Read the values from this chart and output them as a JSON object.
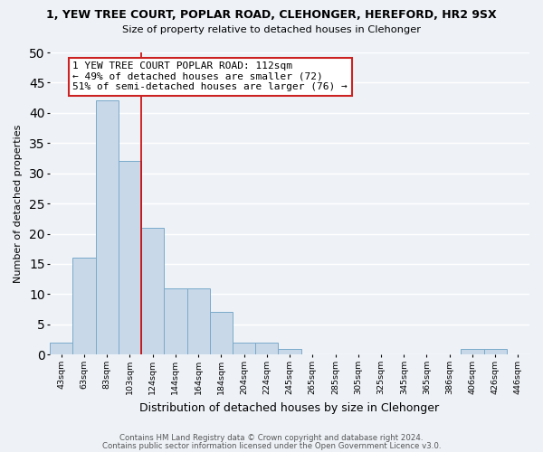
{
  "title_line1": "1, YEW TREE COURT, POPLAR ROAD, CLEHONGER, HEREFORD, HR2 9SX",
  "title_line2": "Size of property relative to detached houses in Clehonger",
  "xlabel": "Distribution of detached houses by size in Clehonger",
  "ylabel": "Number of detached properties",
  "bin_labels": [
    "43sqm",
    "63sqm",
    "83sqm",
    "103sqm",
    "124sqm",
    "144sqm",
    "164sqm",
    "184sqm",
    "204sqm",
    "224sqm",
    "245sqm",
    "265sqm",
    "285sqm",
    "305sqm",
    "325sqm",
    "345sqm",
    "365sqm",
    "386sqm",
    "406sqm",
    "426sqm",
    "446sqm"
  ],
  "bar_heights": [
    2,
    16,
    42,
    32,
    21,
    11,
    11,
    7,
    2,
    2,
    1,
    0,
    0,
    0,
    0,
    0,
    0,
    0,
    1,
    1,
    0
  ],
  "bar_color": "#c8d8e8",
  "bar_edge_color": "#7aaaca",
  "vline_x_index": 3.5,
  "vline_color": "#cc0000",
  "annotation_title": "1 YEW TREE COURT POPLAR ROAD: 112sqm",
  "annotation_line2": "← 49% of detached houses are smaller (72)",
  "annotation_line3": "51% of semi-detached houses are larger (76) →",
  "annotation_box_facecolor": "#ffffff",
  "annotation_box_edgecolor": "#cc2222",
  "ylim": [
    0,
    50
  ],
  "yticks": [
    0,
    5,
    10,
    15,
    20,
    25,
    30,
    35,
    40,
    45,
    50
  ],
  "footer_line1": "Contains HM Land Registry data © Crown copyright and database right 2024.",
  "footer_line2": "Contains public sector information licensed under the Open Government Licence v3.0.",
  "bg_color": "#eef2f7",
  "grid_color": "#ffffff"
}
